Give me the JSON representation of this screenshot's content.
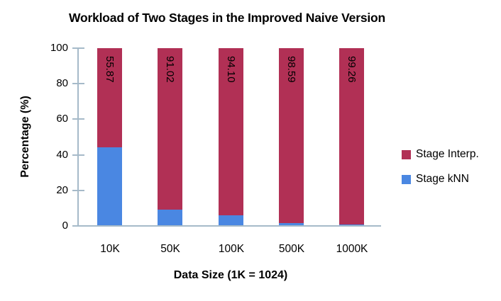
{
  "title": "Workload of Two Stages in the Improved Naive Version",
  "colors": {
    "stage_interp": "#b13055",
    "stage_knn": "#4a87e2",
    "axis": "#a6bac9",
    "text": "#000000",
    "background": "#ffffff"
  },
  "chart_data": {
    "type": "bar",
    "stacked": true,
    "title": "Workload of Two Stages in the Improved Naive Version",
    "xlabel": "Data Size (1K = 1024)",
    "ylabel": "Percentage (%)",
    "categories": [
      "10K",
      "50K",
      "100K",
      "500K",
      "1000K"
    ],
    "series": [
      {
        "name": "Stage kNN",
        "color": "#4a87e2",
        "values": [
          44.13,
          8.98,
          5.9,
          1.41,
          0.74
        ]
      },
      {
        "name": "Stage Interp.",
        "color": "#b13055",
        "values": [
          55.87,
          91.02,
          94.1,
          98.59,
          99.26
        ]
      }
    ],
    "bar_labels": [
      "55.87",
      "91.02",
      "94.10",
      "98.59",
      "99.26"
    ],
    "ylim": [
      0,
      100
    ],
    "yticks": [
      0,
      20,
      40,
      60,
      80,
      100
    ],
    "grid": false,
    "legend_position": "right"
  },
  "legend": {
    "items": [
      {
        "label": "Stage Interp.",
        "color": "#b13055"
      },
      {
        "label": "Stage kNN",
        "color": "#4a87e2"
      }
    ]
  }
}
